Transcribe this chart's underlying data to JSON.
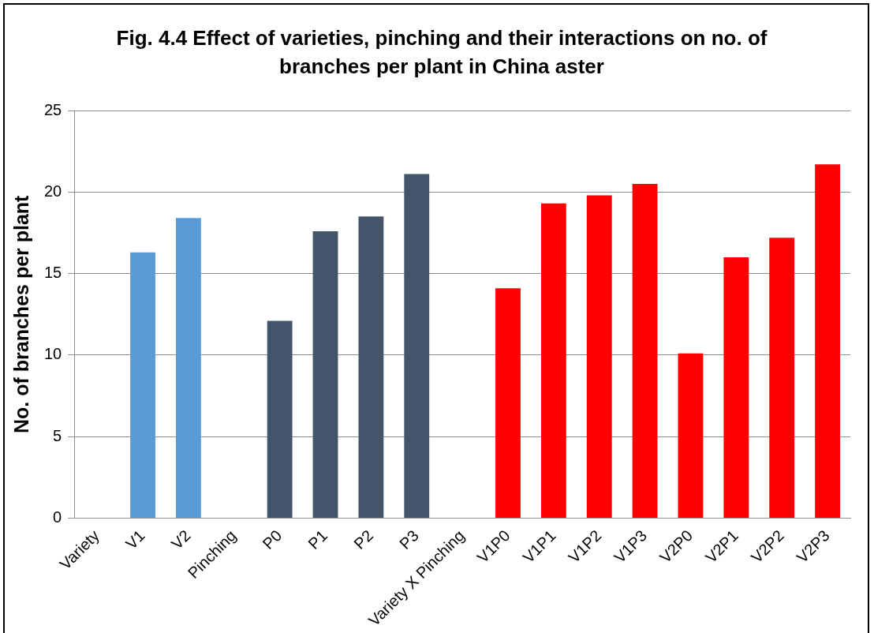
{
  "chart_data": {
    "type": "bar",
    "title": "Fig. 4.4 Effect of varieties, pinching and their interactions on no. of branches per plant in China aster",
    "ylabel": "No. of branches per plant",
    "categories": [
      "Variety",
      "V1",
      "V2",
      "Pinching",
      "P0",
      "P1",
      "P2",
      "P3",
      "Variety X Pinching",
      "V1P0",
      "V1P1",
      "V1P2",
      "V1P3",
      "V2P0",
      "V2P1",
      "V2P2",
      "V2P3"
    ],
    "values": [
      null,
      16.3,
      18.4,
      null,
      12.1,
      17.6,
      18.5,
      21.1,
      null,
      14.1,
      19.3,
      19.8,
      20.5,
      10.1,
      16.0,
      17.2,
      21.7
    ],
    "colors": [
      "#5b9bd5",
      "#5b9bd5",
      "#5b9bd5",
      "#44546a",
      "#44546a",
      "#44546a",
      "#44546a",
      "#44546a",
      "#ff0000",
      "#ff0000",
      "#ff0000",
      "#ff0000",
      "#ff0000",
      "#ff0000",
      "#ff0000",
      "#ff0000",
      "#ff0000"
    ],
    "ylim": [
      0,
      25
    ],
    "yticks": [
      0,
      5,
      10,
      15,
      20,
      25
    ],
    "grid": "y",
    "legend": false
  }
}
